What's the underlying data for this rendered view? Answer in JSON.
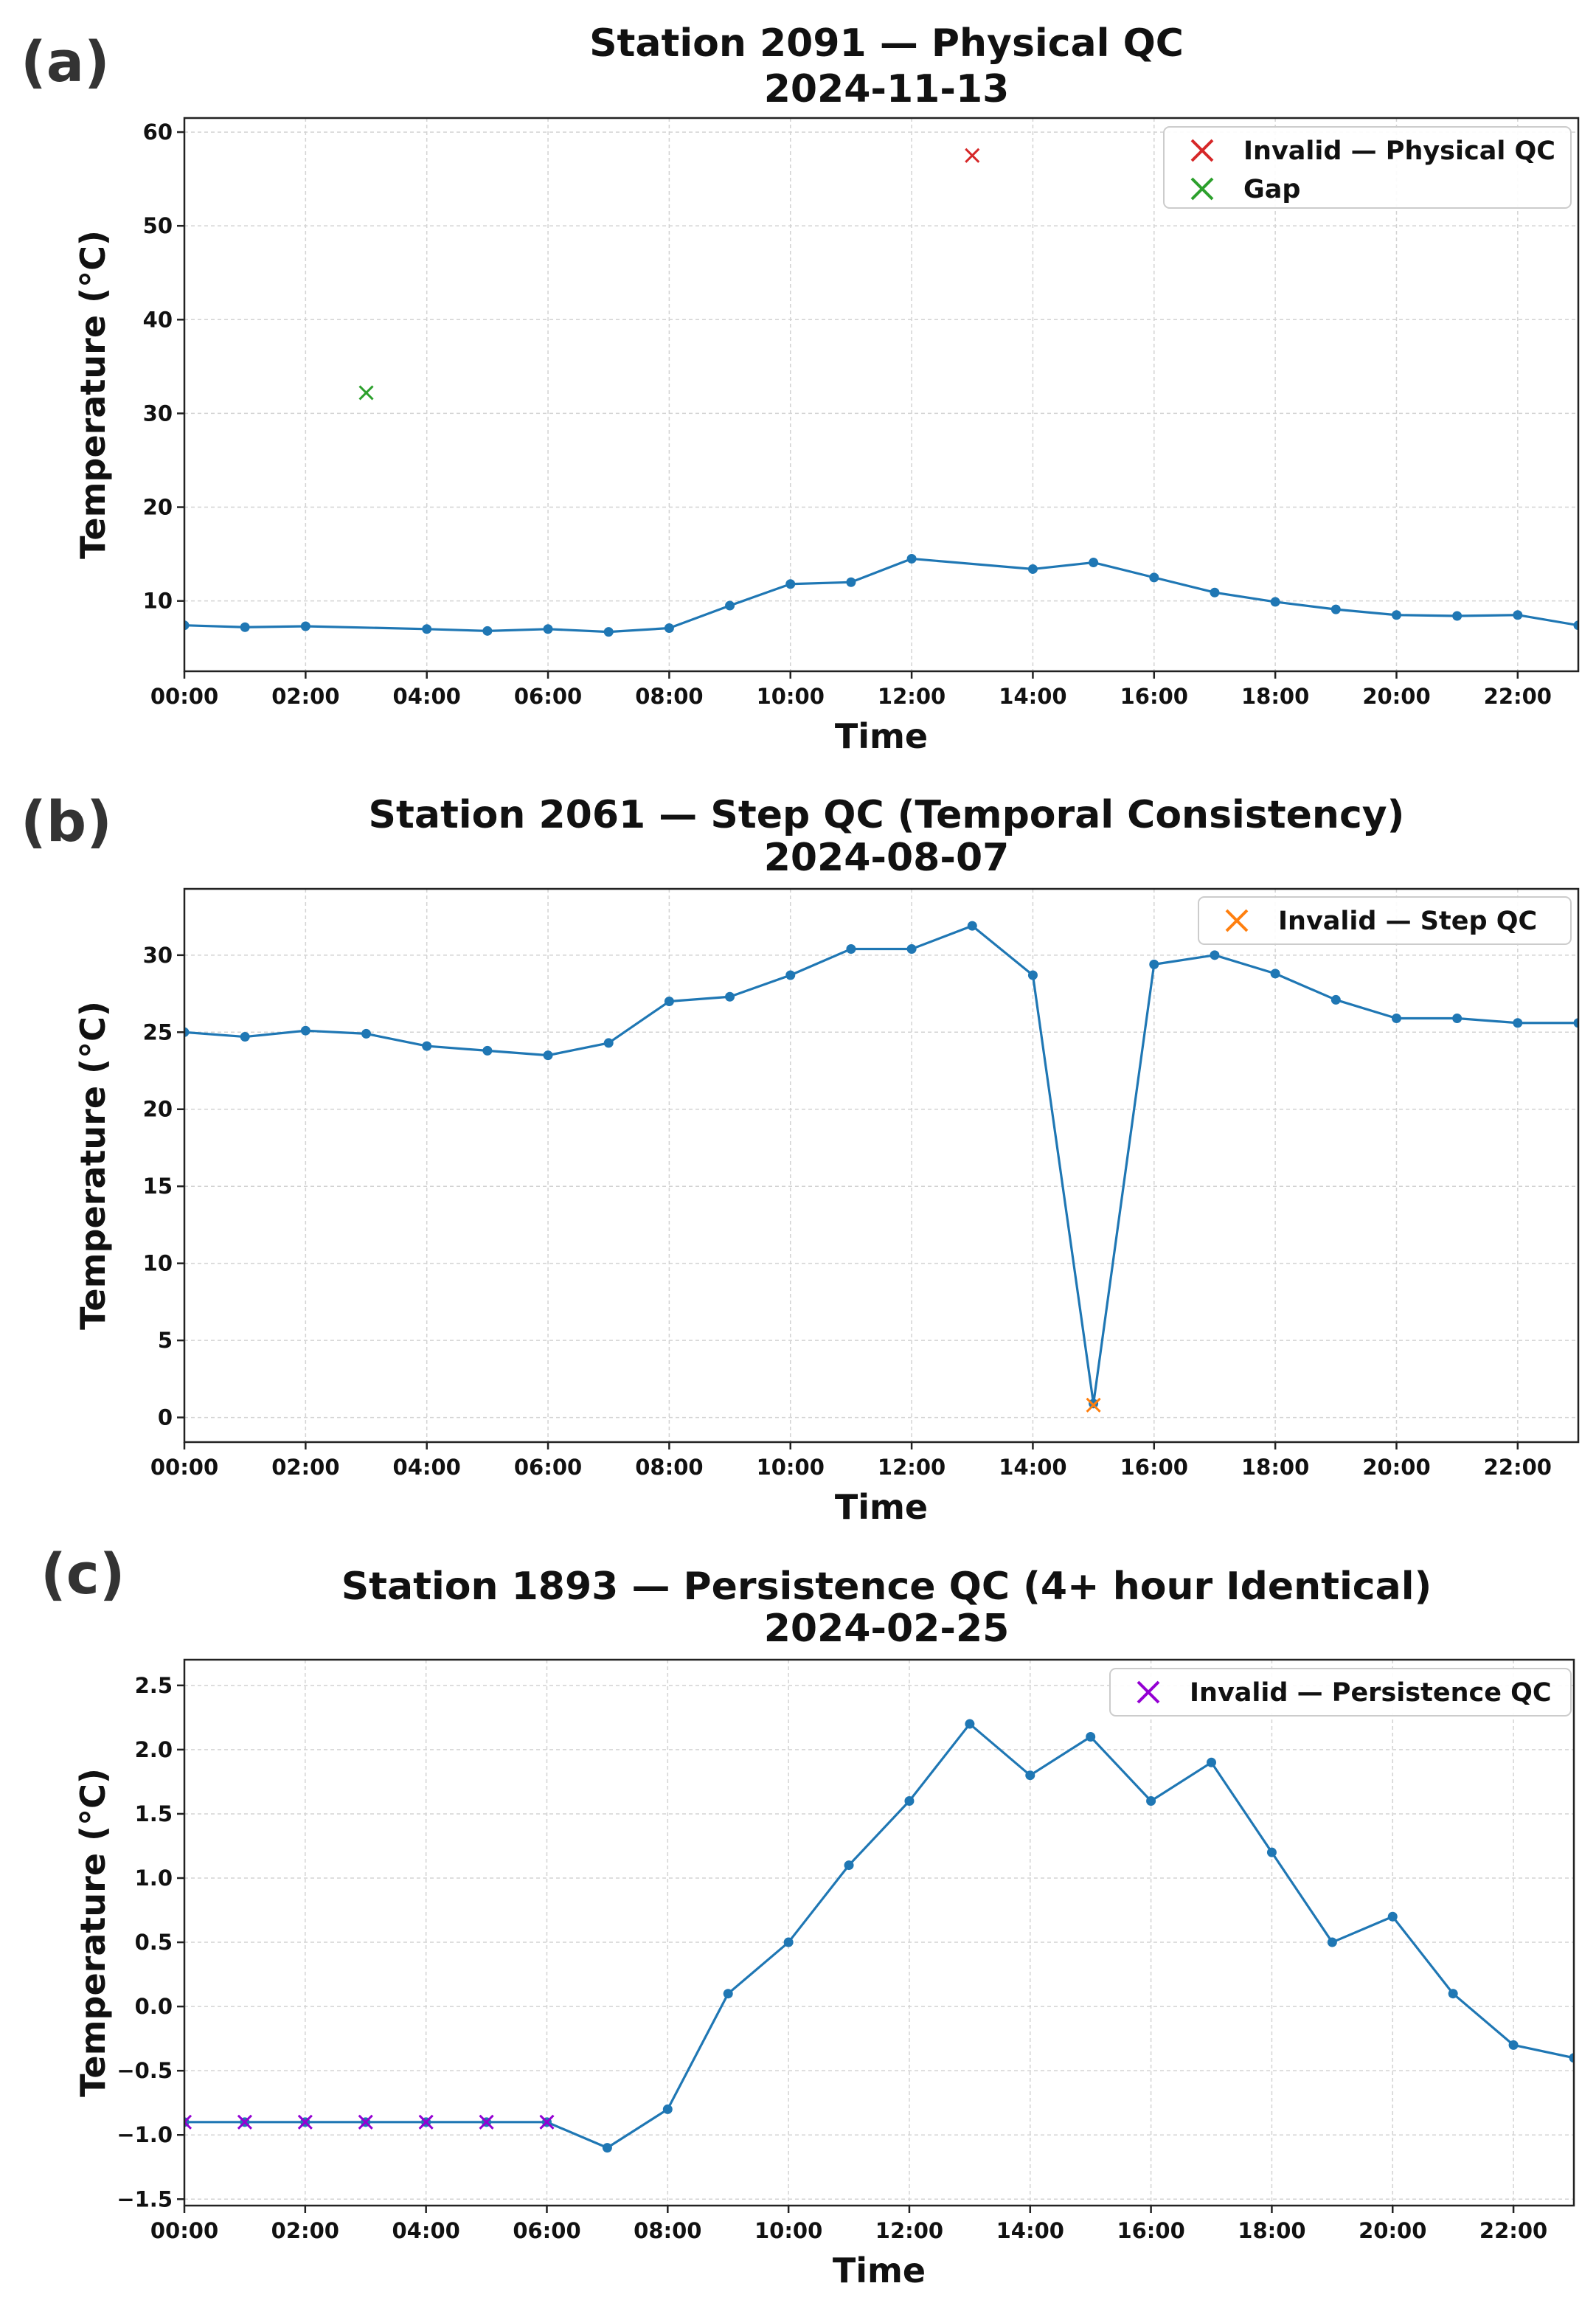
{
  "chart_data": [
    {
      "type": "line",
      "panel_label": "(a)",
      "title": "Station 2091 — Physical QC",
      "subtitle": "2024-11-13",
      "xlabel": "Time",
      "ylabel": "Temperature (°C)",
      "xlim": [
        0,
        23
      ],
      "ylim": [
        2.5,
        61.5
      ],
      "x_ticks": [
        0,
        2,
        4,
        6,
        8,
        10,
        12,
        14,
        16,
        18,
        20,
        22
      ],
      "x_tick_labels": [
        "00:00",
        "02:00",
        "04:00",
        "06:00",
        "08:00",
        "10:00",
        "12:00",
        "14:00",
        "16:00",
        "18:00",
        "20:00",
        "22:00"
      ],
      "y_ticks": [
        10,
        20,
        30,
        40,
        50,
        60
      ],
      "y_tick_labels": [
        "10",
        "20",
        "30",
        "40",
        "50",
        "60"
      ],
      "grid": true,
      "legend_position": "top-right",
      "series": [
        {
          "name": "Temperature",
          "color": "#1f77b4",
          "x": [
            0,
            1,
            2,
            4,
            5,
            6,
            7,
            8,
            9,
            10,
            11,
            12,
            14,
            15,
            16,
            17,
            18,
            19,
            20,
            21,
            22,
            23
          ],
          "values": [
            7.4,
            7.2,
            7.3,
            7.0,
            6.8,
            7.0,
            6.7,
            7.1,
            9.5,
            11.8,
            12.0,
            14.5,
            13.4,
            14.1,
            12.5,
            10.9,
            9.9,
            9.1,
            8.5,
            8.4,
            8.5,
            7.4
          ]
        }
      ],
      "flags": [
        {
          "name": "Invalid — Physical QC",
          "color": "#d62728",
          "x": [
            13
          ],
          "values": [
            57.5
          ]
        },
        {
          "name": "Gap",
          "color": "#2ca02c",
          "x": [
            3
          ],
          "values": [
            32.2
          ]
        }
      ]
    },
    {
      "type": "line",
      "panel_label": "(b)",
      "title": "Station 2061 — Step QC (Temporal Consistency)",
      "subtitle": "2024-08-07",
      "xlabel": "Time",
      "ylabel": "Temperature (°C)",
      "xlim": [
        0,
        23
      ],
      "ylim": [
        -1.6,
        34.3
      ],
      "x_ticks": [
        0,
        2,
        4,
        6,
        8,
        10,
        12,
        14,
        16,
        18,
        20,
        22
      ],
      "x_tick_labels": [
        "00:00",
        "02:00",
        "04:00",
        "06:00",
        "08:00",
        "10:00",
        "12:00",
        "14:00",
        "16:00",
        "18:00",
        "20:00",
        "22:00"
      ],
      "y_ticks": [
        0,
        5,
        10,
        15,
        20,
        25,
        30
      ],
      "y_tick_labels": [
        "0",
        "5",
        "10",
        "15",
        "20",
        "25",
        "30"
      ],
      "grid": true,
      "legend_position": "top-right",
      "series": [
        {
          "name": "Temperature",
          "color": "#1f77b4",
          "x": [
            0,
            1,
            2,
            3,
            4,
            5,
            6,
            7,
            8,
            9,
            10,
            11,
            12,
            13,
            14,
            15,
            16,
            17,
            18,
            19,
            20,
            21,
            22,
            23
          ],
          "values": [
            25.0,
            24.7,
            25.1,
            24.9,
            24.1,
            23.8,
            23.5,
            24.3,
            27.0,
            27.3,
            28.7,
            30.4,
            30.4,
            31.9,
            28.7,
            0.9,
            29.4,
            30.0,
            28.8,
            27.1,
            25.9,
            25.9,
            25.6,
            25.6
          ]
        }
      ],
      "flags": [
        {
          "name": "Invalid — Step QC",
          "color": "#ff7f0e",
          "x": [
            15
          ],
          "values": [
            0.8
          ]
        }
      ]
    },
    {
      "type": "line",
      "panel_label": "(c)",
      "title": "Station 1893 — Persistence QC (4+ hour Identical)",
      "subtitle": "2024-02-25",
      "xlabel": "Time",
      "ylabel": "Temperature (°C)",
      "xlim": [
        0,
        23
      ],
      "ylim": [
        -1.55,
        2.7
      ],
      "x_ticks": [
        0,
        2,
        4,
        6,
        8,
        10,
        12,
        14,
        16,
        18,
        20,
        22
      ],
      "x_tick_labels": [
        "00:00",
        "02:00",
        "04:00",
        "06:00",
        "08:00",
        "10:00",
        "12:00",
        "14:00",
        "16:00",
        "18:00",
        "20:00",
        "22:00"
      ],
      "y_ticks": [
        -1.5,
        -1.0,
        -0.5,
        0.0,
        0.5,
        1.0,
        1.5,
        2.0,
        2.5
      ],
      "y_tick_labels": [
        "−1.5",
        "−1.0",
        "−0.5",
        "0.0",
        "0.5",
        "1.0",
        "1.5",
        "2.0",
        "2.5"
      ],
      "grid": true,
      "legend_position": "top-right",
      "series": [
        {
          "name": "Temperature",
          "color": "#1f77b4",
          "x": [
            0,
            1,
            2,
            3,
            4,
            5,
            6,
            7,
            8,
            9,
            10,
            11,
            12,
            13,
            14,
            15,
            16,
            17,
            18,
            19,
            20,
            21,
            22,
            23
          ],
          "values": [
            -0.9,
            -0.9,
            -0.9,
            -0.9,
            -0.9,
            -0.9,
            -0.9,
            -1.1,
            -0.8,
            0.1,
            0.5,
            1.1,
            1.6,
            2.2,
            1.8,
            2.1,
            1.6,
            1.9,
            1.2,
            0.5,
            0.7,
            0.1,
            -0.3,
            -0.4
          ]
        }
      ],
      "flags": [
        {
          "name": "Invalid — Persistence QC",
          "color": "#9400d3",
          "x": [
            0,
            1,
            2,
            3,
            4,
            5,
            6
          ],
          "values": [
            -0.9,
            -0.9,
            -0.9,
            -0.9,
            -0.9,
            -0.9,
            -0.9
          ]
        }
      ]
    }
  ]
}
